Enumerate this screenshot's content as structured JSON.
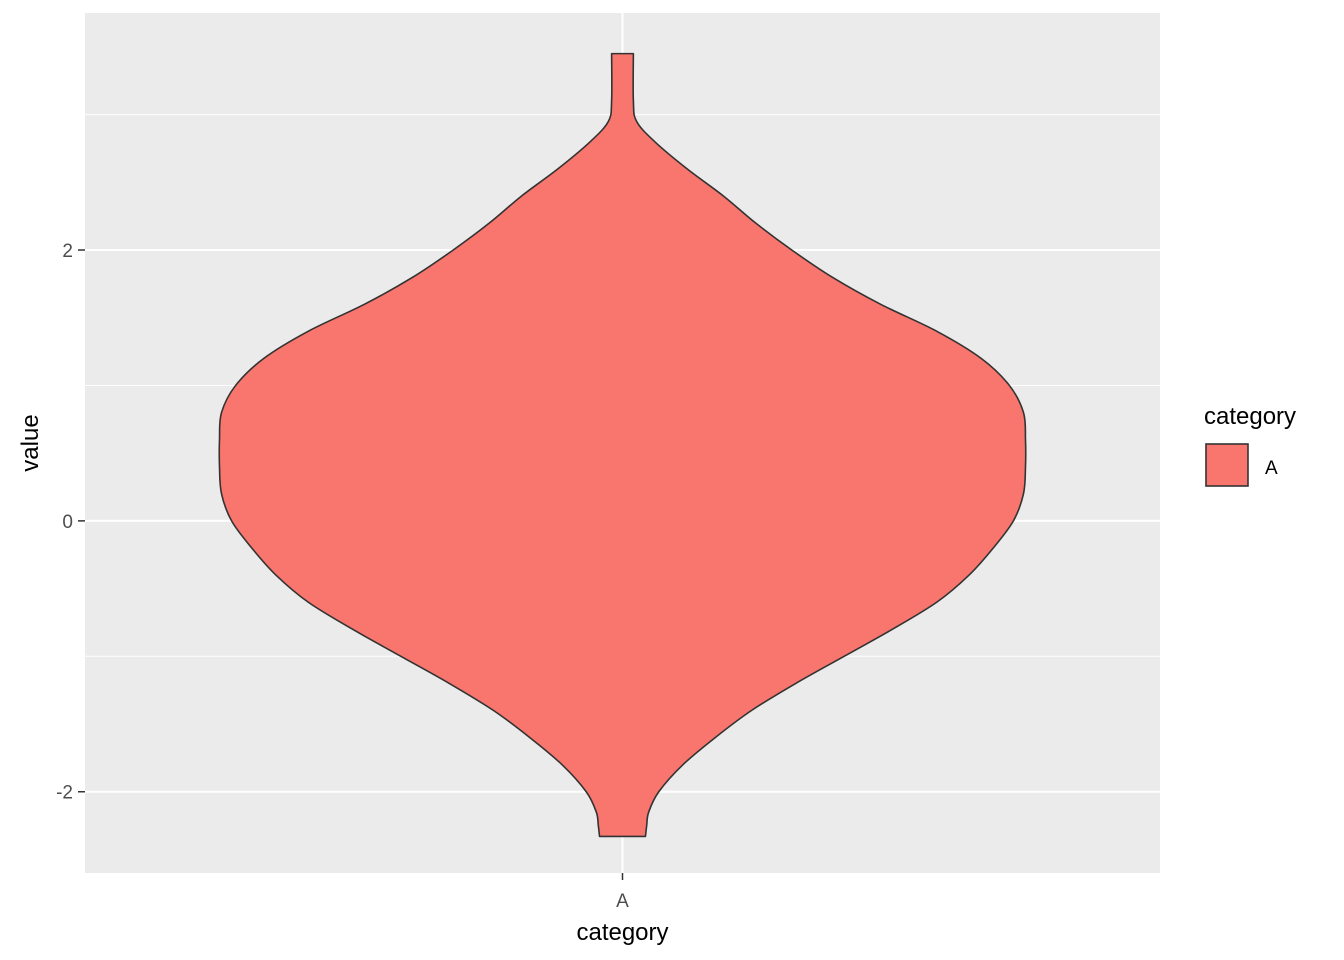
{
  "chart_data": {
    "type": "violin",
    "xlabel": "category",
    "ylabel": "value",
    "categories": [
      "A"
    ],
    "ylim": [
      -2.6,
      3.75
    ],
    "y_ticks": [
      -2,
      0,
      2
    ],
    "y_tick_labels": [
      "-2",
      "0",
      "2"
    ],
    "grid": true,
    "legend": {
      "title": "category",
      "position": "right",
      "entries": [
        "A"
      ]
    },
    "series": [
      {
        "category": "A",
        "y_min": -2.33,
        "y_max": 3.45,
        "density_profile": [
          [
            3.45,
            0.027
          ],
          [
            3.1,
            0.027
          ],
          [
            2.95,
            0.035
          ],
          [
            2.8,
            0.08
          ],
          [
            2.6,
            0.16
          ],
          [
            2.4,
            0.25
          ],
          [
            2.2,
            0.33
          ],
          [
            2.0,
            0.42
          ],
          [
            1.8,
            0.52
          ],
          [
            1.6,
            0.64
          ],
          [
            1.4,
            0.78
          ],
          [
            1.2,
            0.89
          ],
          [
            1.0,
            0.96
          ],
          [
            0.8,
            0.995
          ],
          [
            0.6,
            1.0
          ],
          [
            0.4,
            1.0
          ],
          [
            0.2,
            0.995
          ],
          [
            0.0,
            0.97
          ],
          [
            -0.2,
            0.92
          ],
          [
            -0.4,
            0.86
          ],
          [
            -0.6,
            0.78
          ],
          [
            -0.8,
            0.67
          ],
          [
            -1.0,
            0.55
          ],
          [
            -1.2,
            0.43
          ],
          [
            -1.4,
            0.32
          ],
          [
            -1.6,
            0.23
          ],
          [
            -1.8,
            0.15
          ],
          [
            -2.0,
            0.09
          ],
          [
            -2.15,
            0.065
          ],
          [
            -2.25,
            0.06
          ],
          [
            -2.33,
            0.057
          ]
        ]
      }
    ]
  },
  "colors": {
    "panel_bg": "#ebebeb",
    "grid": "#ffffff",
    "fill": "#f8766d",
    "outline": "#333333",
    "tick": "#333333",
    "tick_text": "#4d4d4d"
  }
}
